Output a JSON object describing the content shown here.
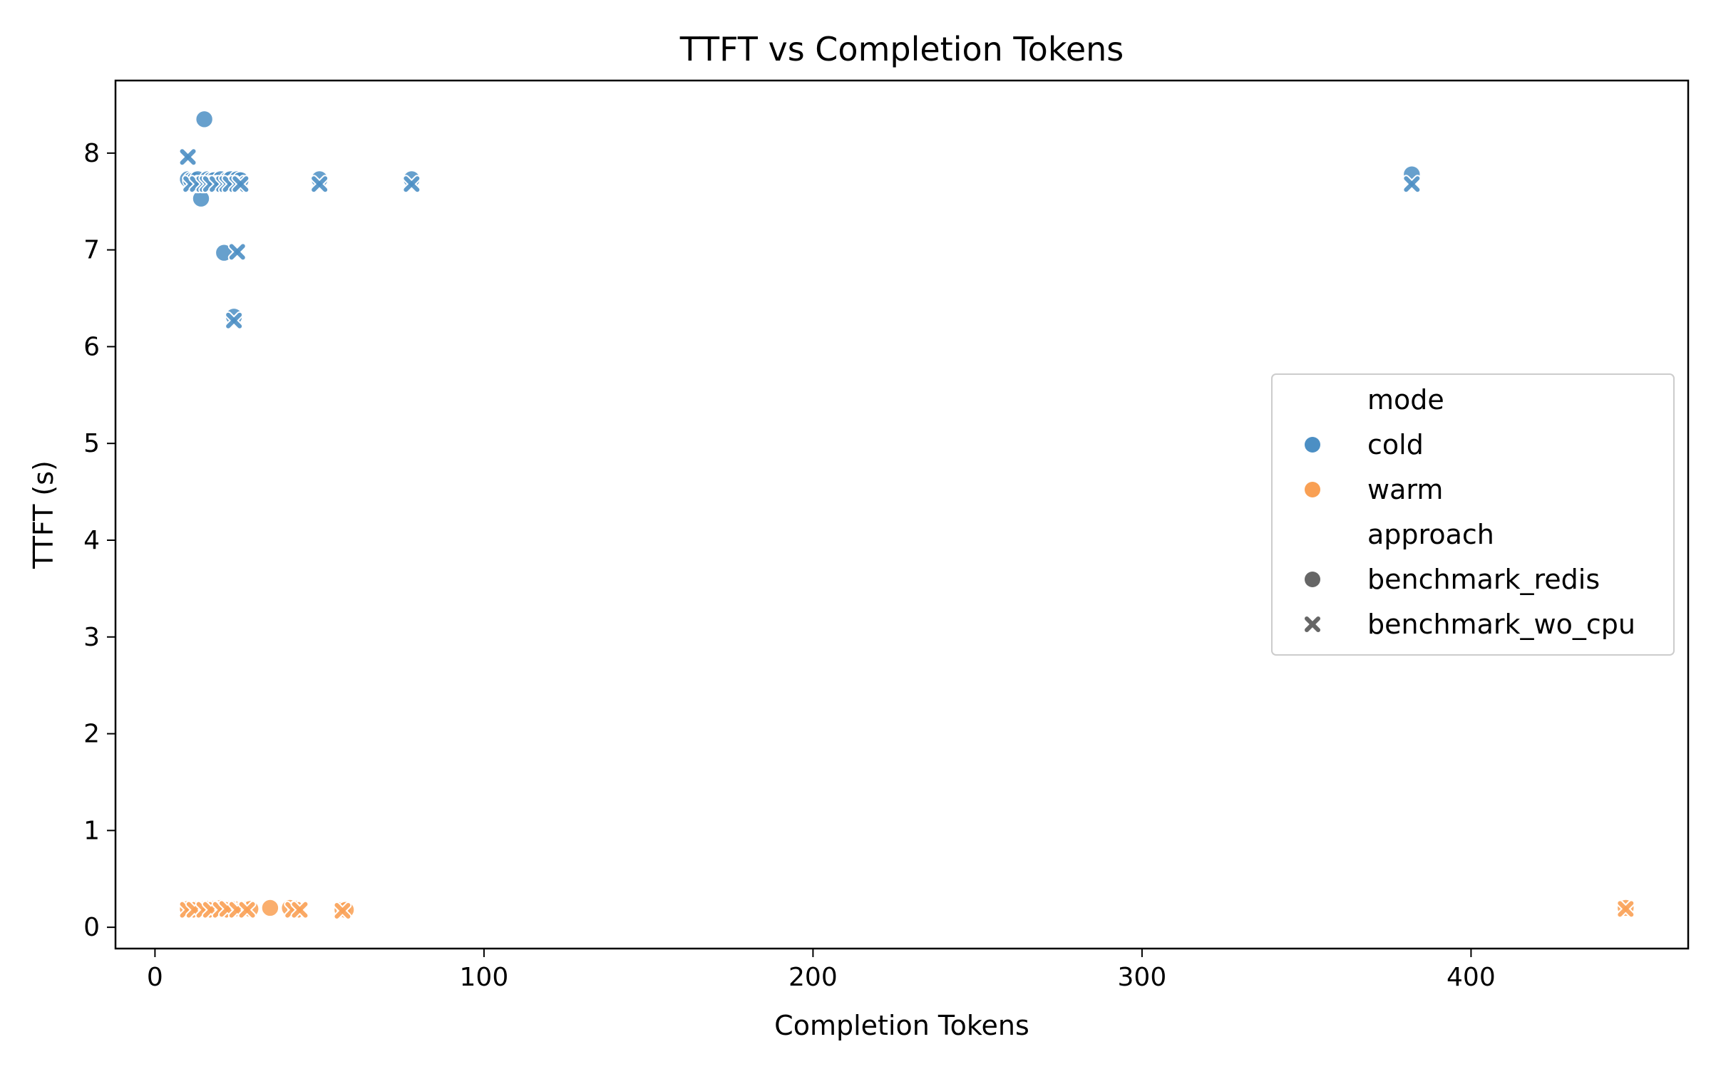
{
  "chart_data": {
    "type": "scatter",
    "title": "TTFT vs Completion Tokens",
    "xlabel": "Completion Tokens",
    "ylabel": "TTFT (s)",
    "xlim": [
      -12,
      466
    ],
    "ylim": [
      -0.22,
      8.75
    ],
    "xticks": [
      0,
      100,
      200,
      300,
      400
    ],
    "yticks": [
      0,
      1,
      2,
      3,
      4,
      5,
      6,
      7,
      8
    ],
    "grid": false,
    "legend": {
      "placement": "center-right",
      "hue_title": "mode",
      "style_title": "approach",
      "hue_entries": [
        {
          "name": "cold",
          "color": "#4c8fc4"
        },
        {
          "name": "warm",
          "color": "#f9a054"
        }
      ],
      "style_entries": [
        {
          "name": "benchmark_redis",
          "marker": "circle"
        },
        {
          "name": "benchmark_wo_cpu",
          "marker": "x"
        }
      ]
    },
    "colors": {
      "cold": "#4c8fc4",
      "warm": "#f9a054",
      "style_marker": "#666666"
    },
    "series": [
      {
        "name": "cold / benchmark_redis",
        "mode": "cold",
        "approach": "benchmark_redis",
        "marker": "circle",
        "points": [
          [
            10,
            7.73
          ],
          [
            11,
            7.72
          ],
          [
            12,
            7.72
          ],
          [
            13,
            7.73
          ],
          [
            14,
            7.53
          ],
          [
            15,
            8.35
          ],
          [
            16,
            7.73
          ],
          [
            17,
            7.72
          ],
          [
            18,
            7.72
          ],
          [
            20,
            7.73
          ],
          [
            21,
            6.97
          ],
          [
            22,
            7.72
          ],
          [
            23,
            7.73
          ],
          [
            24,
            6.31
          ],
          [
            25,
            7.73
          ],
          [
            26,
            7.72
          ],
          [
            50,
            7.73
          ],
          [
            78,
            7.73
          ],
          [
            382,
            7.78
          ]
        ]
      },
      {
        "name": "cold / benchmark_wo_cpu",
        "mode": "cold",
        "approach": "benchmark_wo_cpu",
        "marker": "x",
        "points": [
          [
            10,
            7.96
          ],
          [
            11,
            7.68
          ],
          [
            13,
            7.68
          ],
          [
            15,
            7.68
          ],
          [
            16,
            7.68
          ],
          [
            17,
            7.68
          ],
          [
            19,
            7.68
          ],
          [
            21,
            7.68
          ],
          [
            22,
            7.68
          ],
          [
            23,
            7.68
          ],
          [
            24,
            6.27
          ],
          [
            25,
            6.98
          ],
          [
            25,
            7.68
          ],
          [
            26,
            7.68
          ],
          [
            50,
            7.68
          ],
          [
            78,
            7.68
          ],
          [
            382,
            7.68
          ]
        ]
      },
      {
        "name": "warm / benchmark_redis",
        "mode": "warm",
        "approach": "benchmark_redis",
        "marker": "circle",
        "points": [
          [
            10,
            0.19
          ],
          [
            12,
            0.19
          ],
          [
            14,
            0.19
          ],
          [
            16,
            0.19
          ],
          [
            18,
            0.19
          ],
          [
            20,
            0.2
          ],
          [
            22,
            0.19
          ],
          [
            24,
            0.19
          ],
          [
            27,
            0.19
          ],
          [
            29,
            0.19
          ],
          [
            35,
            0.2
          ],
          [
            41,
            0.2
          ],
          [
            43,
            0.19
          ],
          [
            57,
            0.18
          ],
          [
            58,
            0.18
          ],
          [
            447,
            0.2
          ]
        ]
      },
      {
        "name": "warm / benchmark_wo_cpu",
        "mode": "warm",
        "approach": "benchmark_wo_cpu",
        "marker": "x",
        "points": [
          [
            10,
            0.18
          ],
          [
            12,
            0.18
          ],
          [
            15,
            0.18
          ],
          [
            17,
            0.18
          ],
          [
            20,
            0.18
          ],
          [
            22,
            0.19
          ],
          [
            25,
            0.18
          ],
          [
            28,
            0.18
          ],
          [
            42,
            0.18
          ],
          [
            44,
            0.18
          ],
          [
            57,
            0.17
          ],
          [
            447,
            0.19
          ]
        ]
      }
    ]
  }
}
